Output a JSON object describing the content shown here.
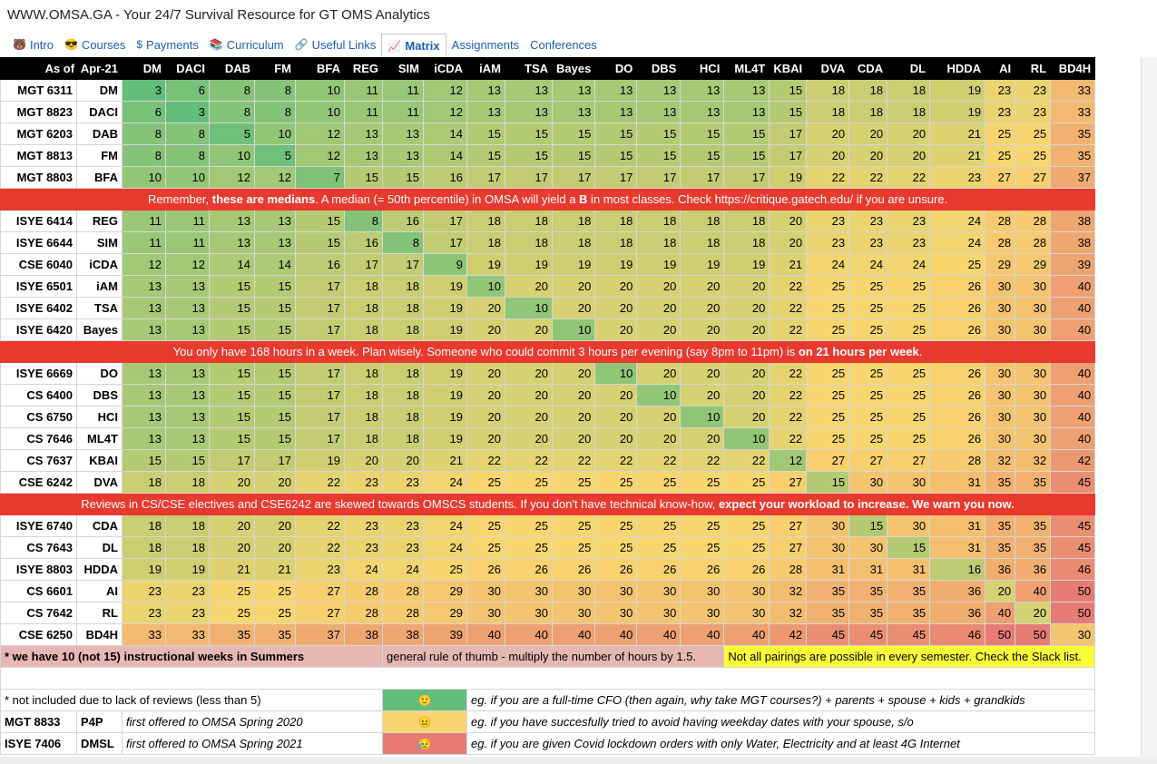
{
  "title": "WWW.OMSA.GA - Your 24/7 Survival Resource for GT OMS Analytics",
  "tabs": [
    {
      "icon": "🐻",
      "label": "Intro"
    },
    {
      "icon": "😎",
      "label": "Courses"
    },
    {
      "icon": "$",
      "label": "Payments"
    },
    {
      "icon": "📚",
      "label": "Curriculum"
    },
    {
      "icon": "🔗",
      "label": "Useful Links"
    },
    {
      "icon": "📈",
      "label": "Matrix",
      "active": true
    },
    {
      "icon": "",
      "label": "Assignments"
    },
    {
      "icon": "",
      "label": "Conferences"
    }
  ],
  "header": {
    "as_of": "As of",
    "date": "Apr-21"
  },
  "columns": [
    "DM",
    "DACI",
    "DAB",
    "FM",
    "BFA",
    "REG",
    "SIM",
    "iCDA",
    "iAM",
    "TSA",
    "Bayes",
    "DO",
    "DBS",
    "HCI",
    "ML4T",
    "KBAI",
    "DVA",
    "CDA",
    "DL",
    "HDDA",
    "AI",
    "RL",
    "BD4H"
  ],
  "rows": [
    {
      "code": "MGT 6311",
      "abbr": "DM",
      "values": [
        3,
        6,
        8,
        8,
        10,
        11,
        11,
        12,
        13,
        13,
        13,
        13,
        13,
        13,
        13,
        15,
        18,
        18,
        18,
        19,
        23,
        23,
        33
      ]
    },
    {
      "code": "MGT 8823",
      "abbr": "DACI",
      "values": [
        6,
        3,
        8,
        8,
        10,
        11,
        11,
        12,
        13,
        13,
        13,
        13,
        13,
        13,
        13,
        15,
        18,
        18,
        18,
        19,
        23,
        23,
        33
      ]
    },
    {
      "code": "MGT 6203",
      "abbr": "DAB",
      "values": [
        8,
        8,
        5,
        10,
        12,
        13,
        13,
        14,
        15,
        15,
        15,
        15,
        15,
        15,
        15,
        17,
        20,
        20,
        20,
        21,
        25,
        25,
        35
      ]
    },
    {
      "code": "MGT 8813",
      "abbr": "FM",
      "values": [
        8,
        8,
        10,
        5,
        12,
        13,
        13,
        14,
        15,
        15,
        15,
        15,
        15,
        15,
        15,
        17,
        20,
        20,
        20,
        21,
        25,
        25,
        35
      ]
    },
    {
      "code": "MGT 8803",
      "abbr": "BFA",
      "values": [
        10,
        10,
        12,
        12,
        7,
        15,
        15,
        16,
        17,
        17,
        17,
        17,
        17,
        17,
        17,
        19,
        22,
        22,
        22,
        23,
        27,
        27,
        37
      ]
    },
    {
      "banner": true,
      "parts": [
        "Remember, ",
        "these are medians",
        ". A median (= 50th percentile) in OMSA will yield a ",
        "B",
        " in most classes. Check ",
        "https://critique.gatech.edu/",
        " if you are unsure."
      ]
    },
    {
      "code": "ISYE 6414",
      "abbr": "REG",
      "values": [
        11,
        11,
        13,
        13,
        15,
        8,
        16,
        17,
        18,
        18,
        18,
        18,
        18,
        18,
        18,
        20,
        23,
        23,
        23,
        24,
        28,
        28,
        38
      ]
    },
    {
      "code": "ISYE 6644",
      "abbr": "SIM",
      "values": [
        11,
        11,
        13,
        13,
        15,
        16,
        8,
        17,
        18,
        18,
        18,
        18,
        18,
        18,
        18,
        20,
        23,
        23,
        23,
        24,
        28,
        28,
        38
      ]
    },
    {
      "code": "CSE 6040",
      "abbr": "iCDA",
      "values": [
        12,
        12,
        14,
        14,
        16,
        17,
        17,
        9,
        19,
        19,
        19,
        19,
        19,
        19,
        19,
        21,
        24,
        24,
        24,
        25,
        29,
        29,
        39
      ]
    },
    {
      "code": "ISYE 6501",
      "abbr": "iAM",
      "values": [
        13,
        13,
        15,
        15,
        17,
        18,
        18,
        19,
        10,
        20,
        20,
        20,
        20,
        20,
        20,
        22,
        25,
        25,
        25,
        26,
        30,
        30,
        40
      ]
    },
    {
      "code": "ISYE 6402",
      "abbr": "TSA",
      "values": [
        13,
        13,
        15,
        15,
        17,
        18,
        18,
        19,
        20,
        10,
        20,
        20,
        20,
        20,
        20,
        22,
        25,
        25,
        25,
        26,
        30,
        30,
        40
      ]
    },
    {
      "code": "ISYE 6420",
      "abbr": "Bayes",
      "values": [
        13,
        13,
        15,
        15,
        17,
        18,
        18,
        19,
        20,
        20,
        10,
        20,
        20,
        20,
        20,
        22,
        25,
        25,
        25,
        26,
        30,
        30,
        40
      ]
    },
    {
      "banner": true,
      "parts": [
        "You only have 168 hours in a week. Plan wisely. Someone who could commit 3 hours per evening (say 8pm to 11pm) is ",
        "on 21 hours per week",
        "."
      ]
    },
    {
      "code": "ISYE 6669",
      "abbr": "DO",
      "values": [
        13,
        13,
        15,
        15,
        17,
        18,
        18,
        19,
        20,
        20,
        20,
        10,
        20,
        20,
        20,
        22,
        25,
        25,
        25,
        26,
        30,
        30,
        40
      ]
    },
    {
      "code": "CS 6400",
      "abbr": "DBS",
      "values": [
        13,
        13,
        15,
        15,
        17,
        18,
        18,
        19,
        20,
        20,
        20,
        20,
        10,
        20,
        20,
        22,
        25,
        25,
        25,
        26,
        30,
        30,
        40
      ]
    },
    {
      "code": "CS 6750",
      "abbr": "HCI",
      "values": [
        13,
        13,
        15,
        15,
        17,
        18,
        18,
        19,
        20,
        20,
        20,
        20,
        20,
        10,
        20,
        22,
        25,
        25,
        25,
        26,
        30,
        30,
        40
      ]
    },
    {
      "code": "CS 7646",
      "abbr": "ML4T",
      "values": [
        13,
        13,
        15,
        15,
        17,
        18,
        18,
        19,
        20,
        20,
        20,
        20,
        20,
        20,
        10,
        22,
        25,
        25,
        25,
        26,
        30,
        30,
        40
      ]
    },
    {
      "code": "CS 7637",
      "abbr": "KBAI",
      "values": [
        15,
        15,
        17,
        17,
        19,
        20,
        20,
        21,
        22,
        22,
        22,
        22,
        22,
        22,
        22,
        12,
        27,
        27,
        27,
        28,
        32,
        32,
        42
      ]
    },
    {
      "code": "CSE 6242",
      "abbr": "DVA",
      "values": [
        18,
        18,
        20,
        20,
        22,
        23,
        23,
        24,
        25,
        25,
        25,
        25,
        25,
        25,
        25,
        27,
        15,
        30,
        30,
        31,
        35,
        35,
        45
      ]
    },
    {
      "banner": true,
      "parts": [
        "Reviews in CS/CSE electives and CSE6242 are skewed towards OMSCS students. If you don't have technical know-how, ",
        "expect your workload to increase. We warn you now."
      ]
    },
    {
      "code": "ISYE 6740",
      "abbr": "CDA",
      "values": [
        18,
        18,
        20,
        20,
        22,
        23,
        23,
        24,
        25,
        25,
        25,
        25,
        25,
        25,
        25,
        27,
        30,
        15,
        30,
        31,
        35,
        35,
        45
      ]
    },
    {
      "code": "CS 7643",
      "abbr": "DL",
      "values": [
        18,
        18,
        20,
        20,
        22,
        23,
        23,
        24,
        25,
        25,
        25,
        25,
        25,
        25,
        25,
        27,
        30,
        30,
        15,
        31,
        35,
        35,
        45
      ]
    },
    {
      "code": "ISYE 8803",
      "abbr": "HDDA",
      "values": [
        19,
        19,
        21,
        21,
        23,
        24,
        24,
        25,
        26,
        26,
        26,
        26,
        26,
        26,
        26,
        28,
        31,
        31,
        31,
        16,
        36,
        36,
        46
      ]
    },
    {
      "code": "CS 6601",
      "abbr": "AI",
      "values": [
        23,
        23,
        25,
        25,
        27,
        28,
        28,
        29,
        30,
        30,
        30,
        30,
        30,
        30,
        30,
        32,
        35,
        35,
        35,
        36,
        20,
        40,
        50
      ]
    },
    {
      "code": "CS 7642",
      "abbr": "RL",
      "values": [
        23,
        23,
        25,
        25,
        27,
        28,
        28,
        29,
        30,
        30,
        30,
        30,
        30,
        30,
        30,
        32,
        35,
        35,
        35,
        36,
        40,
        20,
        50
      ]
    },
    {
      "code": "CSE 6250",
      "abbr": "BD4H",
      "values": [
        33,
        33,
        35,
        35,
        37,
        38,
        38,
        39,
        40,
        40,
        40,
        40,
        40,
        40,
        40,
        42,
        45,
        45,
        45,
        46,
        50,
        50,
        30
      ]
    }
  ],
  "footer": {
    "summer_note": "* we have 10 (not 15) instructional weeks in Summers",
    "rule_of_thumb": "general rule of thumb - multiply the number of hours by 1.5.",
    "pairings_note": "Not all pairings are possible in every semester. Check the Slack list.",
    "not_included": "* not included due to lack of reviews (less than 5)",
    "legend": [
      {
        "emoji": "🙂",
        "color": "#63be7b",
        "text": "eg. if you are a full-time CFO (then again, why take MGT courses?) + parents + spouse + kids + grandkids"
      },
      {
        "emoji": "😐",
        "color": "#f7d570",
        "text": "eg. if you have succesfully tried to avoid having weekday dates with your spouse, s/o"
      },
      {
        "emoji": "😥",
        "color": "#e67c73",
        "text": "eg. if you are given Covid lockdown orders with only Water, Electricity and at least 4G Internet"
      }
    ],
    "excluded": [
      {
        "code": "MGT 8833",
        "abbr": "P4P",
        "note": "first offered to OMSA Spring 2020"
      },
      {
        "code": "ISYE 7406",
        "abbr": "DMSL",
        "note": "first offered to OMSA Spring 2021"
      }
    ]
  },
  "colors": {
    "low": "#63be7b",
    "mid": "#f8d66f",
    "high": "#e67c73",
    "banner": "#e8392e",
    "summer": "#e5b8b3",
    "highlight": "#fbfc38"
  }
}
